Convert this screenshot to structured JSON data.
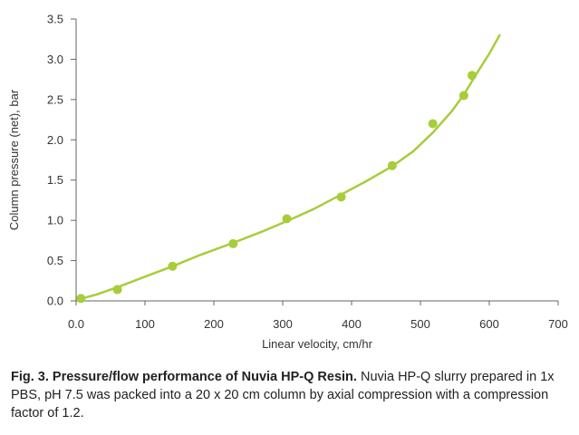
{
  "chart_data": {
    "type": "scatter",
    "xlabel": "Linear velocity, cm/hr",
    "ylabel": "Column pressure (net), bar",
    "xlim": [
      0,
      700
    ],
    "ylim": [
      0,
      3.5
    ],
    "x_ticks": [
      "0.0",
      "100",
      "200",
      "300",
      "400",
      "500",
      "600",
      "700"
    ],
    "y_ticks": [
      "0.0",
      "0.5",
      "1.0",
      "1.5",
      "2.0",
      "2.5",
      "3.0",
      "3.5"
    ],
    "grid": false,
    "series": [
      {
        "points": [
          {
            "x": 7,
            "y": 0.03
          },
          {
            "x": 60,
            "y": 0.14
          },
          {
            "x": 140,
            "y": 0.43
          },
          {
            "x": 228,
            "y": 0.71
          },
          {
            "x": 306,
            "y": 1.02
          },
          {
            "x": 385,
            "y": 1.29
          },
          {
            "x": 459,
            "y": 1.68
          },
          {
            "x": 518,
            "y": 2.2
          },
          {
            "x": 563,
            "y": 2.55
          },
          {
            "x": 575,
            "y": 2.8
          }
        ],
        "fit_curve": [
          {
            "x": 5,
            "y": 0.02
          },
          {
            "x": 30,
            "y": 0.08
          },
          {
            "x": 60,
            "y": 0.17
          },
          {
            "x": 100,
            "y": 0.3
          },
          {
            "x": 140,
            "y": 0.43
          },
          {
            "x": 180,
            "y": 0.57
          },
          {
            "x": 228,
            "y": 0.72
          },
          {
            "x": 270,
            "y": 0.86
          },
          {
            "x": 306,
            "y": 0.99
          },
          {
            "x": 345,
            "y": 1.14
          },
          {
            "x": 385,
            "y": 1.32
          },
          {
            "x": 420,
            "y": 1.48
          },
          {
            "x": 459,
            "y": 1.67
          },
          {
            "x": 490,
            "y": 1.86
          },
          {
            "x": 518,
            "y": 2.09
          },
          {
            "x": 545,
            "y": 2.35
          },
          {
            "x": 563,
            "y": 2.56
          },
          {
            "x": 580,
            "y": 2.8
          },
          {
            "x": 600,
            "y": 3.07
          },
          {
            "x": 615,
            "y": 3.3
          }
        ]
      }
    ],
    "colors": {
      "series": "#a7cd3a",
      "axis": "#666666"
    }
  },
  "caption": {
    "title": "Fig. 3. Pressure/flow performance of Nuvia HP-Q Resin.",
    "text": " Nuvia HP-Q slurry prepared in 1x PBS, pH 7.5 was packed into a 20 x 20 cm column by axial compression with a compression factor of 1.2."
  }
}
